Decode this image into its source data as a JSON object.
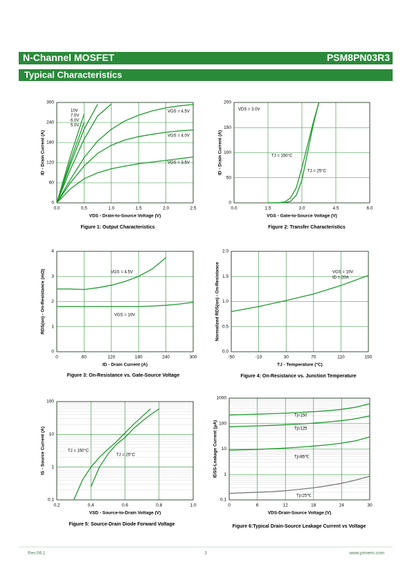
{
  "header": {
    "left": "N-Channel MOSFET",
    "right": "PSM8PN03R3"
  },
  "section_title": "Typical Characteristics",
  "chart_data": [
    {
      "type": "line",
      "x_label": "VDS - Drain-to-Source Voltage (V)",
      "y_label": "ID - Drain Current (A)",
      "caption": "Figure 1:  Output Characteristics",
      "x": [
        0,
        0.25,
        0.5,
        0.75,
        1.0,
        1.25,
        1.5,
        1.75,
        2.0,
        2.25,
        2.5
      ],
      "series": [
        {
          "name": "10V",
          "color": "#1f9a2e",
          "values": [
            0,
            140,
            265,
            null,
            null,
            null,
            null,
            null,
            null,
            null,
            null
          ]
        },
        {
          "name": "7.0V",
          "color": "#1f9a2e",
          "values": [
            0,
            125,
            240,
            null,
            null,
            null,
            null,
            null,
            null,
            null,
            null
          ]
        },
        {
          "name": "6.0V",
          "color": "#1f9a2e",
          "values": [
            0,
            115,
            220,
            295,
            null,
            null,
            null,
            null,
            null,
            null,
            null
          ]
        },
        {
          "name": "5.0V",
          "color": "#1f9a2e",
          "values": [
            0,
            100,
            190,
            260,
            295,
            null,
            null,
            null,
            null,
            null,
            null
          ]
        },
        {
          "name": "VGS = 4.5V",
          "color": "#1f9a2e",
          "values": [
            0,
            70,
            135,
            185,
            220,
            245,
            262,
            275,
            284,
            290,
            294
          ]
        },
        {
          "name": "VGS = 4.0V",
          "color": "#1f9a2e",
          "values": [
            0,
            60,
            110,
            148,
            172,
            188,
            198,
            205,
            211,
            215,
            218
          ]
        },
        {
          "name": "VGS = 3.5V",
          "color": "#1f9a2e",
          "values": [
            0,
            42,
            72,
            90,
            102,
            110,
            117,
            122,
            127,
            132,
            137
          ]
        }
      ],
      "xlim": [
        0,
        2.5
      ],
      "xticks": [
        {
          "value": 0,
          "label": "0.0"
        },
        0.5,
        {
          "value": 1,
          "label": "1.0"
        },
        1.5,
        {
          "value": 2,
          "label": "2.0"
        },
        2.5
      ],
      "ylim": [
        0,
        300
      ],
      "yticks": [
        0,
        60,
        120,
        180,
        240,
        300
      ],
      "grid": true,
      "annotations": []
    },
    {
      "type": "line",
      "x_label": "VGS - Gate-to-Source Voltage (V)",
      "y_label": "ID - Drain Current (A)",
      "caption": "Figure 2:  Transfer Characteristics",
      "x": [
        1.5,
        2.0,
        2.25,
        2.5,
        2.75,
        3.0,
        3.25,
        3.5,
        3.75
      ],
      "series": [
        {
          "name": "TJ = 150°C",
          "color": "#1f9a2e",
          "values": [
            0,
            0.5,
            2,
            10,
            30,
            70,
            115,
            160,
            200
          ]
        },
        {
          "name": "TJ = 25°C",
          "color": "#1f9a2e",
          "values": [
            0,
            0,
            0.5,
            3,
            15,
            45,
            100,
            155,
            200
          ]
        }
      ],
      "xlim": [
        0,
        6
      ],
      "xticks": [
        {
          "value": 0,
          "label": "0.0"
        },
        1.5,
        {
          "value": 3,
          "label": "3.0"
        },
        4.5,
        {
          "value": 6,
          "label": "6.0"
        }
      ],
      "ylim": [
        0,
        200
      ],
      "yticks": [
        0,
        50,
        100,
        150,
        200
      ],
      "grid": true,
      "annotations": [
        "VDS = 3.0V"
      ]
    },
    {
      "type": "line",
      "x_label": "ID - Drain Current (A)",
      "y_label": "RDS(on) - On-Resistance (mΩ)",
      "caption": "Figure 3:  On-Resistance vs. Gate-Source Voltage",
      "x": [
        0,
        30,
        60,
        90,
        120,
        150,
        180,
        210,
        240,
        270,
        300
      ],
      "series": [
        {
          "name": "VGS = 4.5V",
          "color": "#1f9a2e",
          "values": [
            2.5,
            2.5,
            2.48,
            2.55,
            2.65,
            2.8,
            3.0,
            3.3,
            3.75,
            null,
            null
          ]
        },
        {
          "name": "VGS = 10V",
          "color": "#1f9a2e",
          "values": [
            1.8,
            1.8,
            1.8,
            1.8,
            1.8,
            1.8,
            1.8,
            1.82,
            1.85,
            1.9,
            1.97
          ]
        }
      ],
      "xlim": [
        0,
        300
      ],
      "xticks": [
        0,
        60,
        120,
        180,
        240,
        300
      ],
      "ylim": [
        0,
        4
      ],
      "yticks": [
        0,
        1,
        2,
        3,
        4
      ],
      "grid": true,
      "annotations": []
    },
    {
      "type": "line",
      "x_label": "TJ - Temperature (°C)",
      "y_label": "Normalized RDS(on) - On-Resistance",
      "caption": "Figure 4:  On-Resistance vs. Junction Temperature",
      "x": [
        -50,
        -10,
        30,
        70,
        110,
        150
      ],
      "series": [
        {
          "color": "#1f9a2e",
          "values": [
            0.8,
            0.9,
            1.02,
            1.15,
            1.32,
            1.52
          ]
        }
      ],
      "xlim": [
        -50,
        150
      ],
      "xticks": [
        -50,
        -10,
        30,
        70,
        110,
        150
      ],
      "ylim": [
        0,
        2
      ],
      "yticks": [
        {
          "value": 0,
          "label": "0.0"
        },
        0.5,
        {
          "value": 1,
          "label": "1.0"
        },
        1.5,
        {
          "value": 2,
          "label": "2.0"
        }
      ],
      "grid": true,
      "annotations": [
        "VGS = 10V",
        "ID = 20A"
      ]
    },
    {
      "type": "line",
      "x_label": "VSD - Source-to-Drain Voltage (V)",
      "y_label": "IS - Source Current (A)",
      "caption": "Figure 5:  Source-Drain Diode Forward Voltage",
      "x": [
        0.3,
        0.35,
        0.4,
        0.45,
        0.5,
        0.55,
        0.6,
        0.65,
        0.7,
        0.75,
        0.8
      ],
      "series": [
        {
          "name": "TJ = 150°C",
          "color": "#1f9a2e",
          "values": [
            0.1,
            0.4,
            1.0,
            2.0,
            3.5,
            6,
            11,
            20,
            35,
            60,
            null
          ]
        },
        {
          "name": "TJ = 25°C",
          "color": "#1f9a2e",
          "values": [
            null,
            null,
            0.25,
            1.0,
            2.5,
            5,
            8,
            15,
            25,
            40,
            60
          ]
        }
      ],
      "xlim": [
        0.2,
        1.0
      ],
      "xticks": [
        0.2,
        0.4,
        0.6,
        0.8,
        {
          "value": 1,
          "label": "1.0"
        }
      ],
      "ylim": [
        0.1,
        100
      ],
      "yticks": [
        0.1,
        1,
        10,
        100
      ],
      "log_y": true,
      "grid": true,
      "annotations": []
    },
    {
      "type": "line",
      "x_label": "VDS-Drain-Source Voltage (V)",
      "y_label": "IDSS-Leakage Current (μA)",
      "caption": "Figure 6:Typical Drain-Source Leakage Current vs Voltage",
      "x": [
        0,
        3,
        6,
        9,
        12,
        15,
        18,
        21,
        24,
        27,
        30
      ],
      "series": [
        {
          "name": "Tj=150",
          "color": "#1f9a2e",
          "values": [
            220,
            226,
            234,
            244,
            256,
            272,
            292,
            320,
            360,
            440,
            600
          ]
        },
        {
          "name": "Tj=125",
          "color": "#1f9a2e",
          "values": [
            75,
            78,
            81,
            85,
            90,
            96,
            104,
            115,
            130,
            155,
            200
          ]
        },
        {
          "name": "Tj=85℃",
          "color": "#1f9a2e",
          "values": [
            9,
            9.3,
            9.7,
            10.2,
            10.9,
            11.8,
            13,
            14.6,
            17,
            21,
            30
          ]
        },
        {
          "name": "Tj=25℃",
          "color": "#7a7a7a",
          "values": [
            0.18,
            0.19,
            0.2,
            0.21,
            0.23,
            0.26,
            0.3,
            0.36,
            0.45,
            0.6,
            0.85
          ]
        }
      ],
      "xlim": [
        0,
        30
      ],
      "xticks": [
        0,
        6,
        12,
        18,
        24,
        30
      ],
      "ylim": [
        0.1,
        1000
      ],
      "yticks": [
        0.1,
        1,
        10,
        100,
        1000
      ],
      "log_y": true,
      "grid": true,
      "annotations": []
    }
  ],
  "footer": {
    "revision": "Rev.06.1",
    "page": "3",
    "website": "www.prisemi.com"
  }
}
